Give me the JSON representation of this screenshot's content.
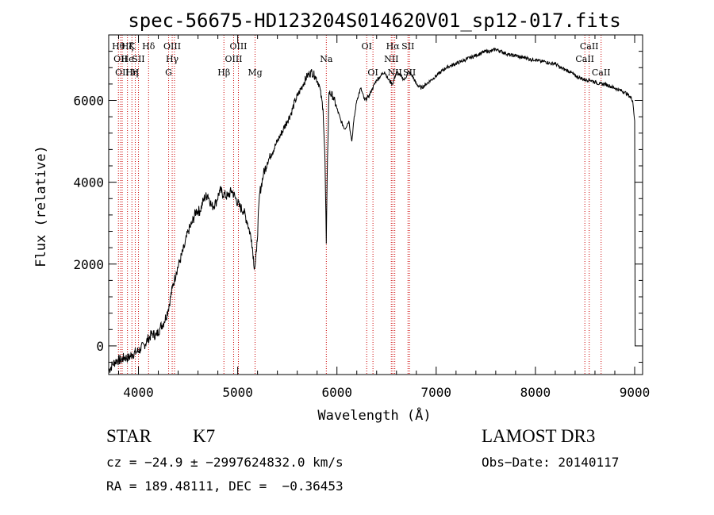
{
  "chart_data": {
    "type": "line",
    "title": "spec-56675-HD123204S014620V01_sp12-017.fits",
    "xlabel": "Wavelength (Å)",
    "ylabel": "Flux (relative)",
    "xlim": [
      3700,
      9080
    ],
    "ylim": [
      -700,
      7600
    ],
    "xticks": [
      4000,
      5000,
      6000,
      7000,
      8000,
      9000
    ],
    "yticks": [
      0,
      2000,
      4000,
      6000
    ],
    "grid": false,
    "series": [
      {
        "x": [
          3700,
          3740,
          3780,
          3820,
          3860,
          3900,
          3940,
          3980,
          4020,
          4060,
          4100,
          4140,
          4180,
          4220,
          4260,
          4300,
          4340,
          4380,
          4420,
          4460,
          4500,
          4540,
          4580,
          4620,
          4660,
          4700,
          4740,
          4780,
          4820,
          4860,
          4900,
          4940,
          4980,
          5020,
          5060,
          5100,
          5140,
          5170,
          5190,
          5220,
          5260,
          5300,
          5340,
          5380,
          5420,
          5460,
          5500,
          5540,
          5580,
          5620,
          5660,
          5700,
          5740,
          5780,
          5820,
          5860,
          5880,
          5893,
          5905,
          5920,
          5960,
          6000,
          6040,
          6080,
          6120,
          6150,
          6170,
          6200,
          6240,
          6280,
          6320,
          6360,
          6400,
          6440,
          6480,
          6520,
          6560,
          6600,
          6640,
          6680,
          6720,
          6760,
          6800,
          6850,
          6900,
          6950,
          7000,
          7050,
          7100,
          7150,
          7200,
          7250,
          7300,
          7350,
          7400,
          7450,
          7500,
          7550,
          7600,
          7650,
          7700,
          7750,
          7800,
          7850,
          7900,
          7950,
          8000,
          8050,
          8100,
          8150,
          8200,
          8250,
          8300,
          8350,
          8400,
          8450,
          8500,
          8550,
          8600,
          8650,
          8700,
          8750,
          8800,
          8850,
          8900,
          8950,
          8980,
          9000,
          9005
        ],
        "y": [
          -600,
          -450,
          -350,
          -350,
          -280,
          -300,
          -200,
          -150,
          -80,
          30,
          180,
          300,
          250,
          450,
          600,
          900,
          1400,
          1800,
          2100,
          2400,
          2800,
          3000,
          3300,
          3300,
          3600,
          3700,
          3400,
          3500,
          3800,
          3700,
          3650,
          3800,
          3600,
          3400,
          3300,
          3000,
          2600,
          1900,
          2300,
          3700,
          4200,
          4500,
          4700,
          4900,
          5100,
          5300,
          5500,
          5700,
          6000,
          6200,
          6400,
          6600,
          6700,
          6600,
          6400,
          5800,
          4500,
          2500,
          4600,
          6200,
          6100,
          5800,
          5500,
          5300,
          5500,
          5000,
          5500,
          6000,
          6300,
          6000,
          6100,
          6300,
          6500,
          6600,
          6700,
          6500,
          6400,
          6700,
          6600,
          6500,
          6700,
          6600,
          6400,
          6300,
          6400,
          6500,
          6600,
          6700,
          6800,
          6850,
          6900,
          6950,
          7000,
          7050,
          7100,
          7150,
          7200,
          7200,
          7250,
          7200,
          7150,
          7100,
          7100,
          7050,
          7050,
          7000,
          7000,
          6950,
          6950,
          6900,
          6900,
          6800,
          6750,
          6700,
          6600,
          6550,
          6500,
          6500,
          6450,
          6400,
          6400,
          6350,
          6300,
          6250,
          6200,
          6100,
          6000,
          5500,
          0
        ]
      }
    ],
    "line_labels": [
      {
        "wl": 3798,
        "text": "Hθ",
        "row": 1
      },
      {
        "wl": 3820,
        "text": "OII",
        "row": 2
      },
      {
        "wl": 3836,
        "text": "OII",
        "row": 3
      },
      {
        "wl": 3889,
        "text": "Hζ",
        "row": 1
      },
      {
        "wl": 3889,
        "text": "He",
        "row": 2
      },
      {
        "wl": 3934,
        "text": "K",
        "row": 1
      },
      {
        "wl": 3933,
        "text": "Hη",
        "row": 3
      },
      {
        "wl": 3968,
        "text": "H",
        "row": 3
      },
      {
        "wl": 4000,
        "text": "SII",
        "row": 2
      },
      {
        "wl": 4102,
        "text": "Hδ",
        "row": 1
      },
      {
        "wl": 4340,
        "text": "OIII",
        "row": 1
      },
      {
        "wl": 4340,
        "text": "Hγ",
        "row": 2
      },
      {
        "wl": 4304,
        "text": "G",
        "row": 3
      },
      {
        "wl": 4861,
        "text": "Hβ",
        "row": 3
      },
      {
        "wl": 5007,
        "text": "OIII",
        "row": 1
      },
      {
        "wl": 4959,
        "text": "OIII",
        "row": 2
      },
      {
        "wl": 5175,
        "text": "Mg",
        "row": 3
      },
      {
        "wl": 5893,
        "text": "Na",
        "row": 2
      },
      {
        "wl": 6300,
        "text": "OI",
        "row": 1
      },
      {
        "wl": 6363,
        "text": "OI",
        "row": 3
      },
      {
        "wl": 6563,
        "text": "Hα",
        "row": 1
      },
      {
        "wl": 6548,
        "text": "NII",
        "row": 2
      },
      {
        "wl": 6583,
        "text": "NII",
        "row": 3
      },
      {
        "wl": 6716,
        "text": "SII",
        "row": 1
      },
      {
        "wl": 6731,
        "text": "SII",
        "row": 3
      },
      {
        "wl": 8542,
        "text": "CaII",
        "row": 1
      },
      {
        "wl": 8498,
        "text": "CaII",
        "row": 2
      },
      {
        "wl": 8662,
        "text": "CaII",
        "row": 3
      }
    ],
    "vlines": [
      3798,
      3820,
      3836,
      3889,
      3934,
      3968,
      4000,
      4102,
      4304,
      4340,
      4363,
      4861,
      4959,
      5007,
      5175,
      5893,
      6300,
      6363,
      6548,
      6563,
      6583,
      6716,
      6731,
      8498,
      8542,
      8662
    ],
    "line_color": "#000000",
    "vline_color": "#cc0000"
  },
  "info": {
    "class": "STAR",
    "subclass": "K7",
    "survey": "LAMOST DR3",
    "cz": "cz = −24.9 ± −2997624832.0 km/s",
    "obs_date": "Obs−Date: 20140117",
    "coords": "RA = 189.48111, DEC =  −0.36453"
  }
}
